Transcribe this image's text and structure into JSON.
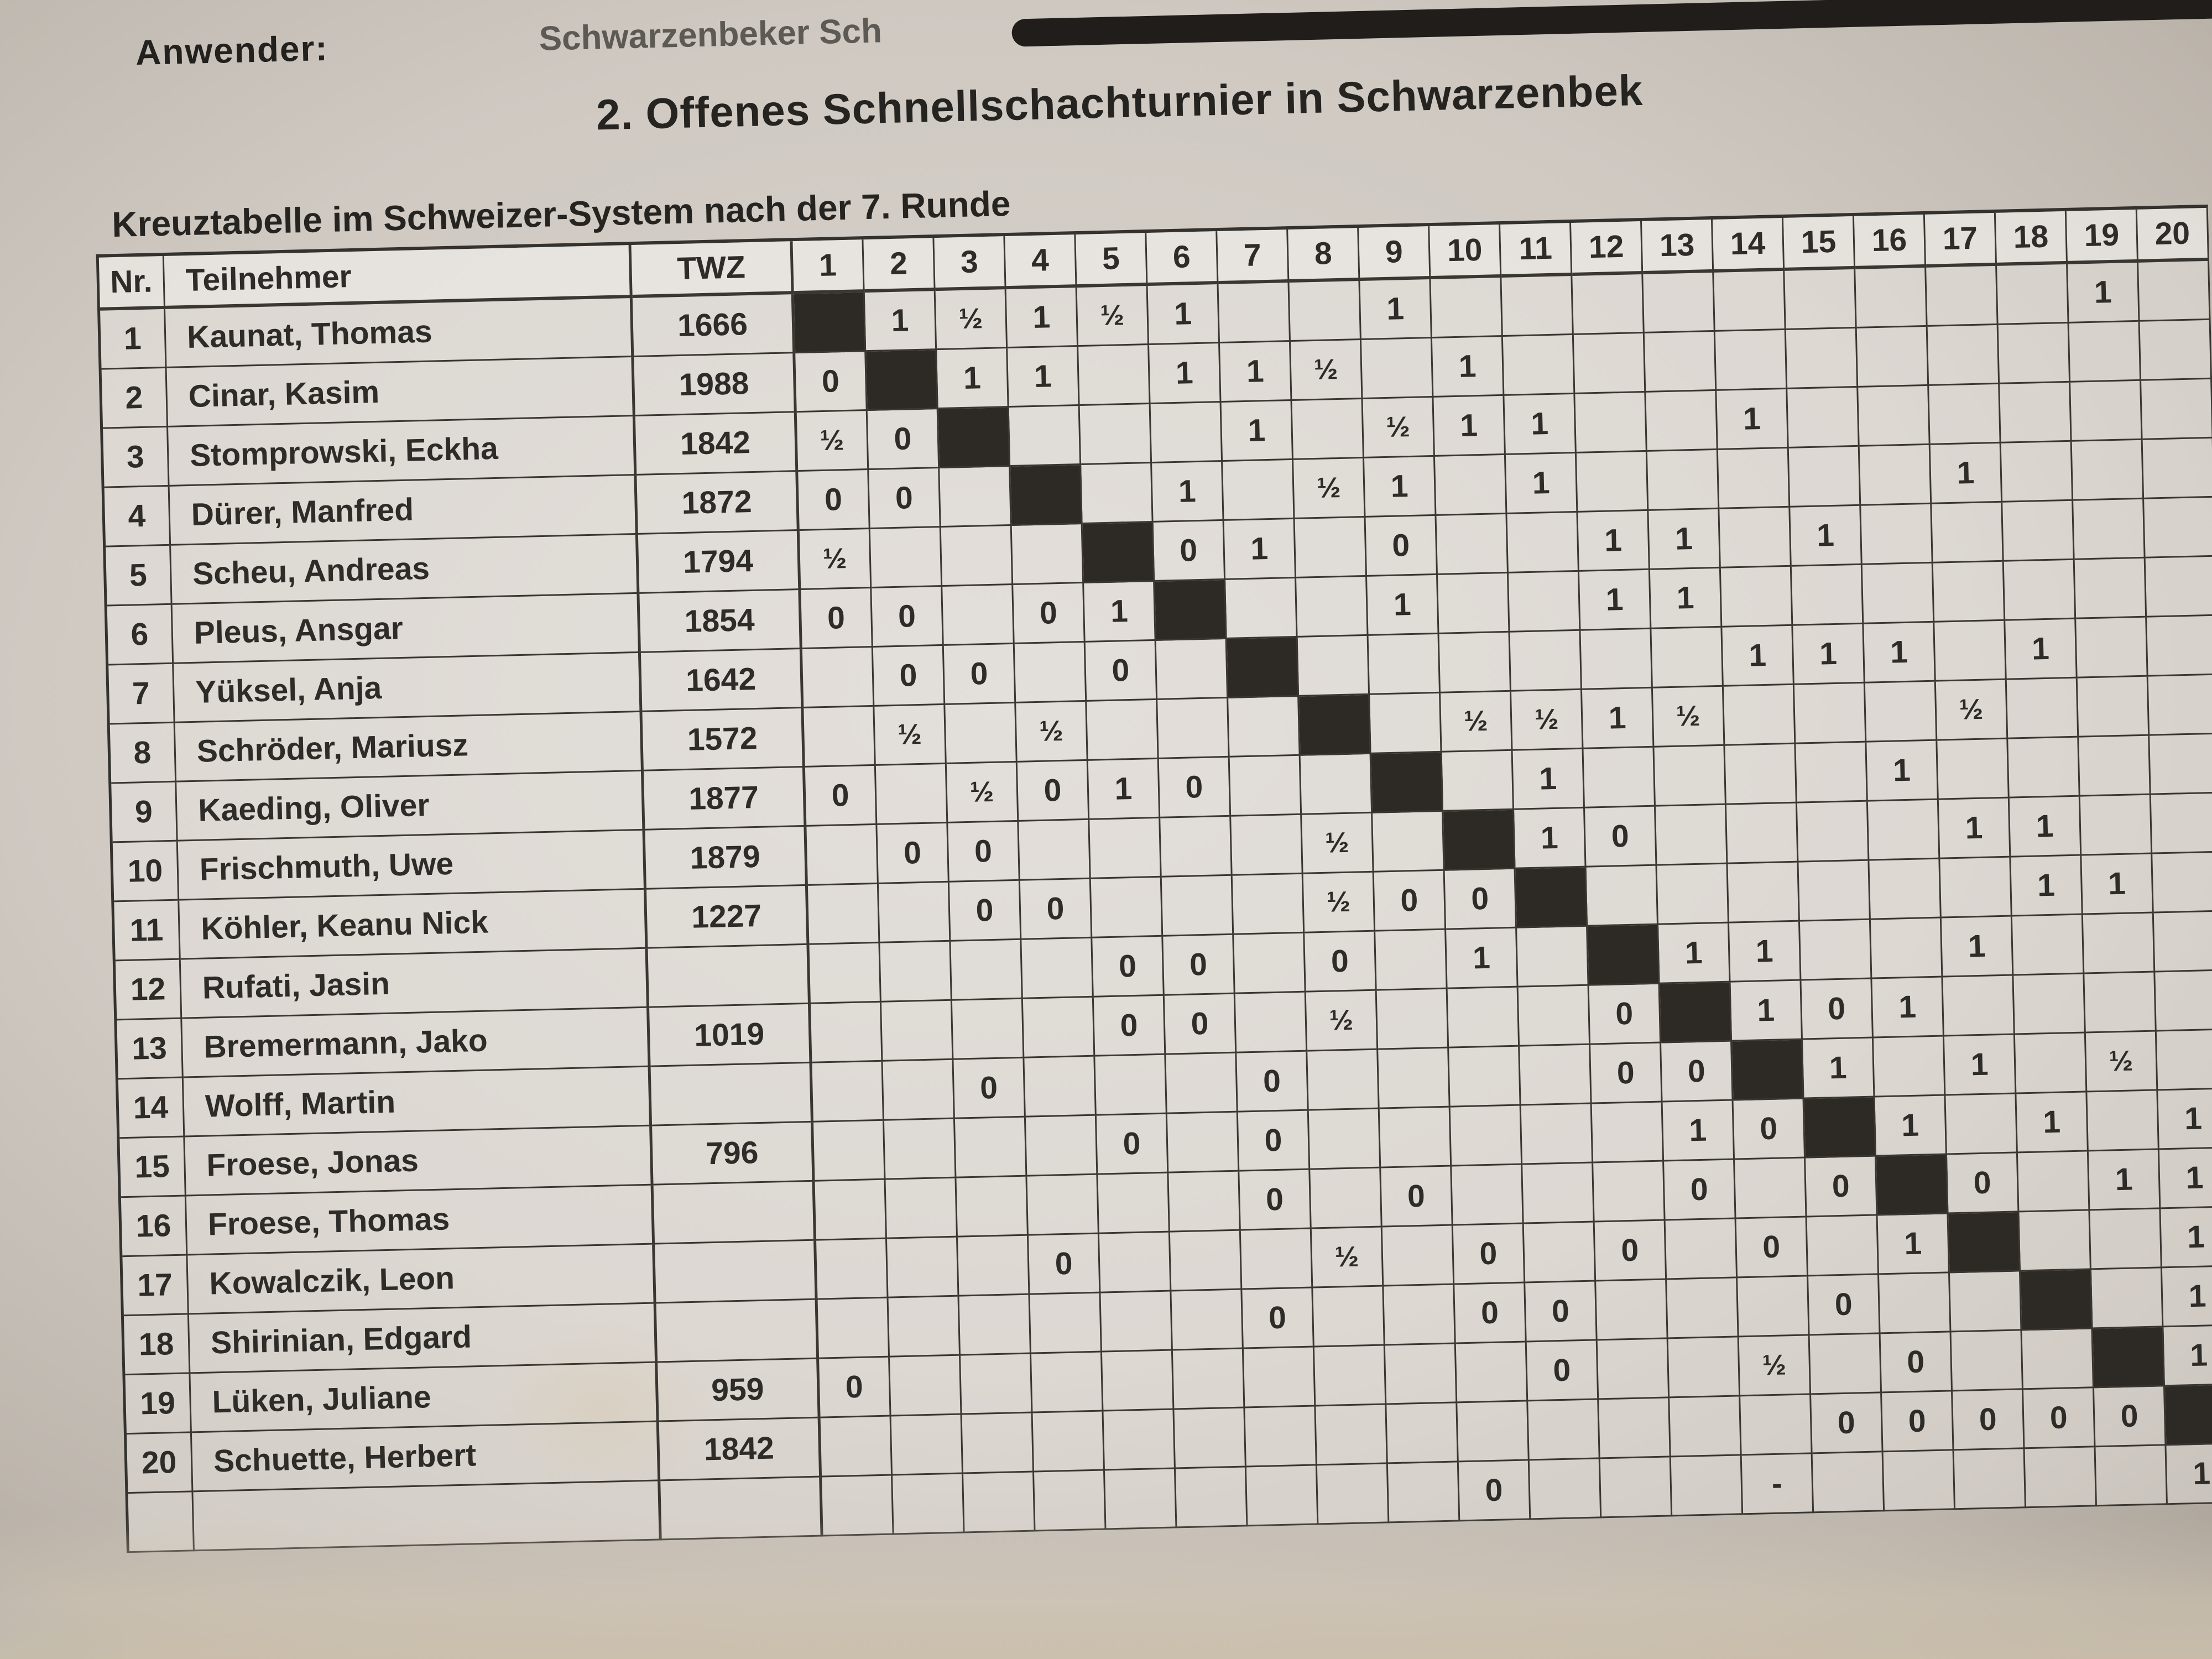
{
  "page": {
    "top_left_cut_text": "Anwender:",
    "top_mid_cut_text": "Schwarzenbeker Sch",
    "title": "2. Offenes Schnellschachturnier in Schwarzenbek",
    "subtitle": "Kreuztabelle im Schweizer-System nach der 7. Runde",
    "paper_color": "#cfc9c2",
    "ink_color": "#2e2c29",
    "diagonal_color": "#2d2a26"
  },
  "table": {
    "headers": {
      "nr": "Nr.",
      "name": "Teilnehmer",
      "twz": "TWZ"
    },
    "round_columns": [
      "1",
      "2",
      "3",
      "4",
      "5",
      "6",
      "7",
      "8",
      "9",
      "10",
      "11",
      "12",
      "13",
      "14",
      "15",
      "16",
      "17",
      "18",
      "19",
      "20"
    ],
    "players": [
      {
        "nr": "1",
        "name": "Kaunat, Thomas",
        "twz": "1666",
        "results": {
          "2": "1",
          "3": "½",
          "4": "1",
          "5": "½",
          "6": "1",
          "9": "1",
          "19": "1"
        }
      },
      {
        "nr": "2",
        "name": "Cinar, Kasim",
        "twz": "1988",
        "results": {
          "1": "0",
          "3": "1",
          "4": "1",
          "6": "1",
          "7": "1",
          "8": "½",
          "10": "1"
        }
      },
      {
        "nr": "3",
        "name": "Stomprowski, Eckha",
        "twz": "1842",
        "results": {
          "1": "½",
          "2": "0",
          "7": "1",
          "9": "½",
          "10": "1",
          "11": "1",
          "14": "1"
        }
      },
      {
        "nr": "4",
        "name": "Dürer, Manfred",
        "twz": "1872",
        "results": {
          "1": "0",
          "2": "0",
          "6": "1",
          "8": "½",
          "9": "1",
          "11": "1",
          "17": "1"
        }
      },
      {
        "nr": "5",
        "name": "Scheu, Andreas",
        "twz": "1794",
        "results": {
          "1": "½",
          "6": "0",
          "7": "1",
          "9": "0",
          "12": "1",
          "13": "1",
          "15": "1"
        }
      },
      {
        "nr": "6",
        "name": "Pleus, Ansgar",
        "twz": "1854",
        "results": {
          "1": "0",
          "2": "0",
          "4": "0",
          "5": "1",
          "9": "1",
          "12": "1",
          "13": "1"
        }
      },
      {
        "nr": "7",
        "name": "Yüksel, Anja",
        "twz": "1642",
        "results": {
          "2": "0",
          "3": "0",
          "5": "0",
          "14": "1",
          "15": "1",
          "16": "1",
          "18": "1"
        }
      },
      {
        "nr": "8",
        "name": "Schröder, Mariusz",
        "twz": "1572",
        "results": {
          "2": "½",
          "4": "½",
          "10": "½",
          "11": "½",
          "12": "1",
          "13": "½",
          "17": "½"
        }
      },
      {
        "nr": "9",
        "name": "Kaeding, Oliver",
        "twz": "1877",
        "results": {
          "1": "0",
          "3": "½",
          "4": "0",
          "5": "1",
          "6": "0",
          "11": "1",
          "16": "1"
        }
      },
      {
        "nr": "10",
        "name": "Frischmuth, Uwe",
        "twz": "1879",
        "results": {
          "2": "0",
          "3": "0",
          "8": "½",
          "11": "1",
          "12": "0",
          "17": "1",
          "18": "1"
        }
      },
      {
        "nr": "11",
        "name": "Köhler, Keanu Nick",
        "twz": "1227",
        "results": {
          "3": "0",
          "4": "0",
          "8": "½",
          "9": "0",
          "10": "0",
          "18": "1",
          "19": "1"
        }
      },
      {
        "nr": "12",
        "name": "Rufati, Jasin",
        "twz": "",
        "results": {
          "5": "0",
          "6": "0",
          "8": "0",
          "10": "1",
          "13": "1",
          "14": "1",
          "17": "1"
        }
      },
      {
        "nr": "13",
        "name": "Bremermann, Jako",
        "twz": "1019",
        "results": {
          "5": "0",
          "6": "0",
          "8": "½",
          "12": "0",
          "14": "1",
          "15": "0",
          "16": "1"
        }
      },
      {
        "nr": "14",
        "name": "Wolff, Martin",
        "twz": "",
        "results": {
          "3": "0",
          "7": "0",
          "12": "0",
          "13": "0",
          "15": "1",
          "17": "1",
          "19": "½"
        }
      },
      {
        "nr": "15",
        "name": "Froese, Jonas",
        "twz": "796",
        "results": {
          "5": "0",
          "7": "0",
          "13": "1",
          "14": "0",
          "16": "1",
          "18": "1",
          "20": "1"
        }
      },
      {
        "nr": "16",
        "name": "Froese, Thomas",
        "twz": "",
        "results": {
          "7": "0",
          "9": "0",
          "13": "0",
          "15": "0",
          "17": "0",
          "19": "1",
          "20": "1"
        }
      },
      {
        "nr": "17",
        "name": "Kowalczik, Leon",
        "twz": "",
        "results": {
          "4": "0",
          "8": "½",
          "10": "0",
          "12": "0",
          "14": "0",
          "16": "1",
          "20": "1"
        }
      },
      {
        "nr": "18",
        "name": "Shirinian, Edgard",
        "twz": "",
        "results": {
          "7": "0",
          "10": "0",
          "11": "0",
          "15": "0",
          "20": "1"
        }
      },
      {
        "nr": "19",
        "name": "Lüken, Juliane",
        "twz": "959",
        "results": {
          "1": "0",
          "11": "0",
          "14": "½",
          "16": "0",
          "20": "1"
        }
      },
      {
        "nr": "20",
        "name": "Schuette, Herbert",
        "twz": "1842",
        "results": {
          "15": "0",
          "16": "0",
          "17": "0",
          "18": "0",
          "19": "0"
        }
      },
      {
        "nr": "",
        "name": "",
        "twz": "",
        "results": {
          "10": "0",
          "14": "-",
          "20": "1"
        }
      }
    ]
  }
}
